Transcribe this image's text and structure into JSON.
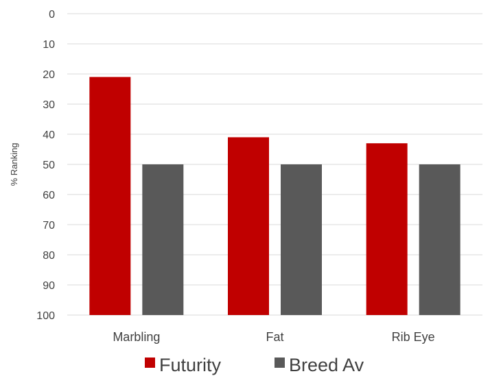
{
  "chart_data": {
    "type": "bar",
    "categories": [
      "Marbling",
      "Fat",
      "Rib Eye"
    ],
    "series": [
      {
        "name": "Futurity",
        "values": [
          21,
          41,
          43
        ],
        "color": "#c00000"
      },
      {
        "name": "Breed Av",
        "values": [
          50,
          50,
          50
        ],
        "color": "#595959"
      }
    ],
    "title": "",
    "xlabel": "",
    "ylabel": "% Ranking",
    "ylim": [
      0,
      100
    ],
    "y_inverted": true,
    "y_ticks": [
      0,
      10,
      20,
      30,
      40,
      50,
      60,
      70,
      80,
      90,
      100
    ],
    "grid": true,
    "legend_position": "bottom",
    "bars_anchor": "bottom"
  }
}
